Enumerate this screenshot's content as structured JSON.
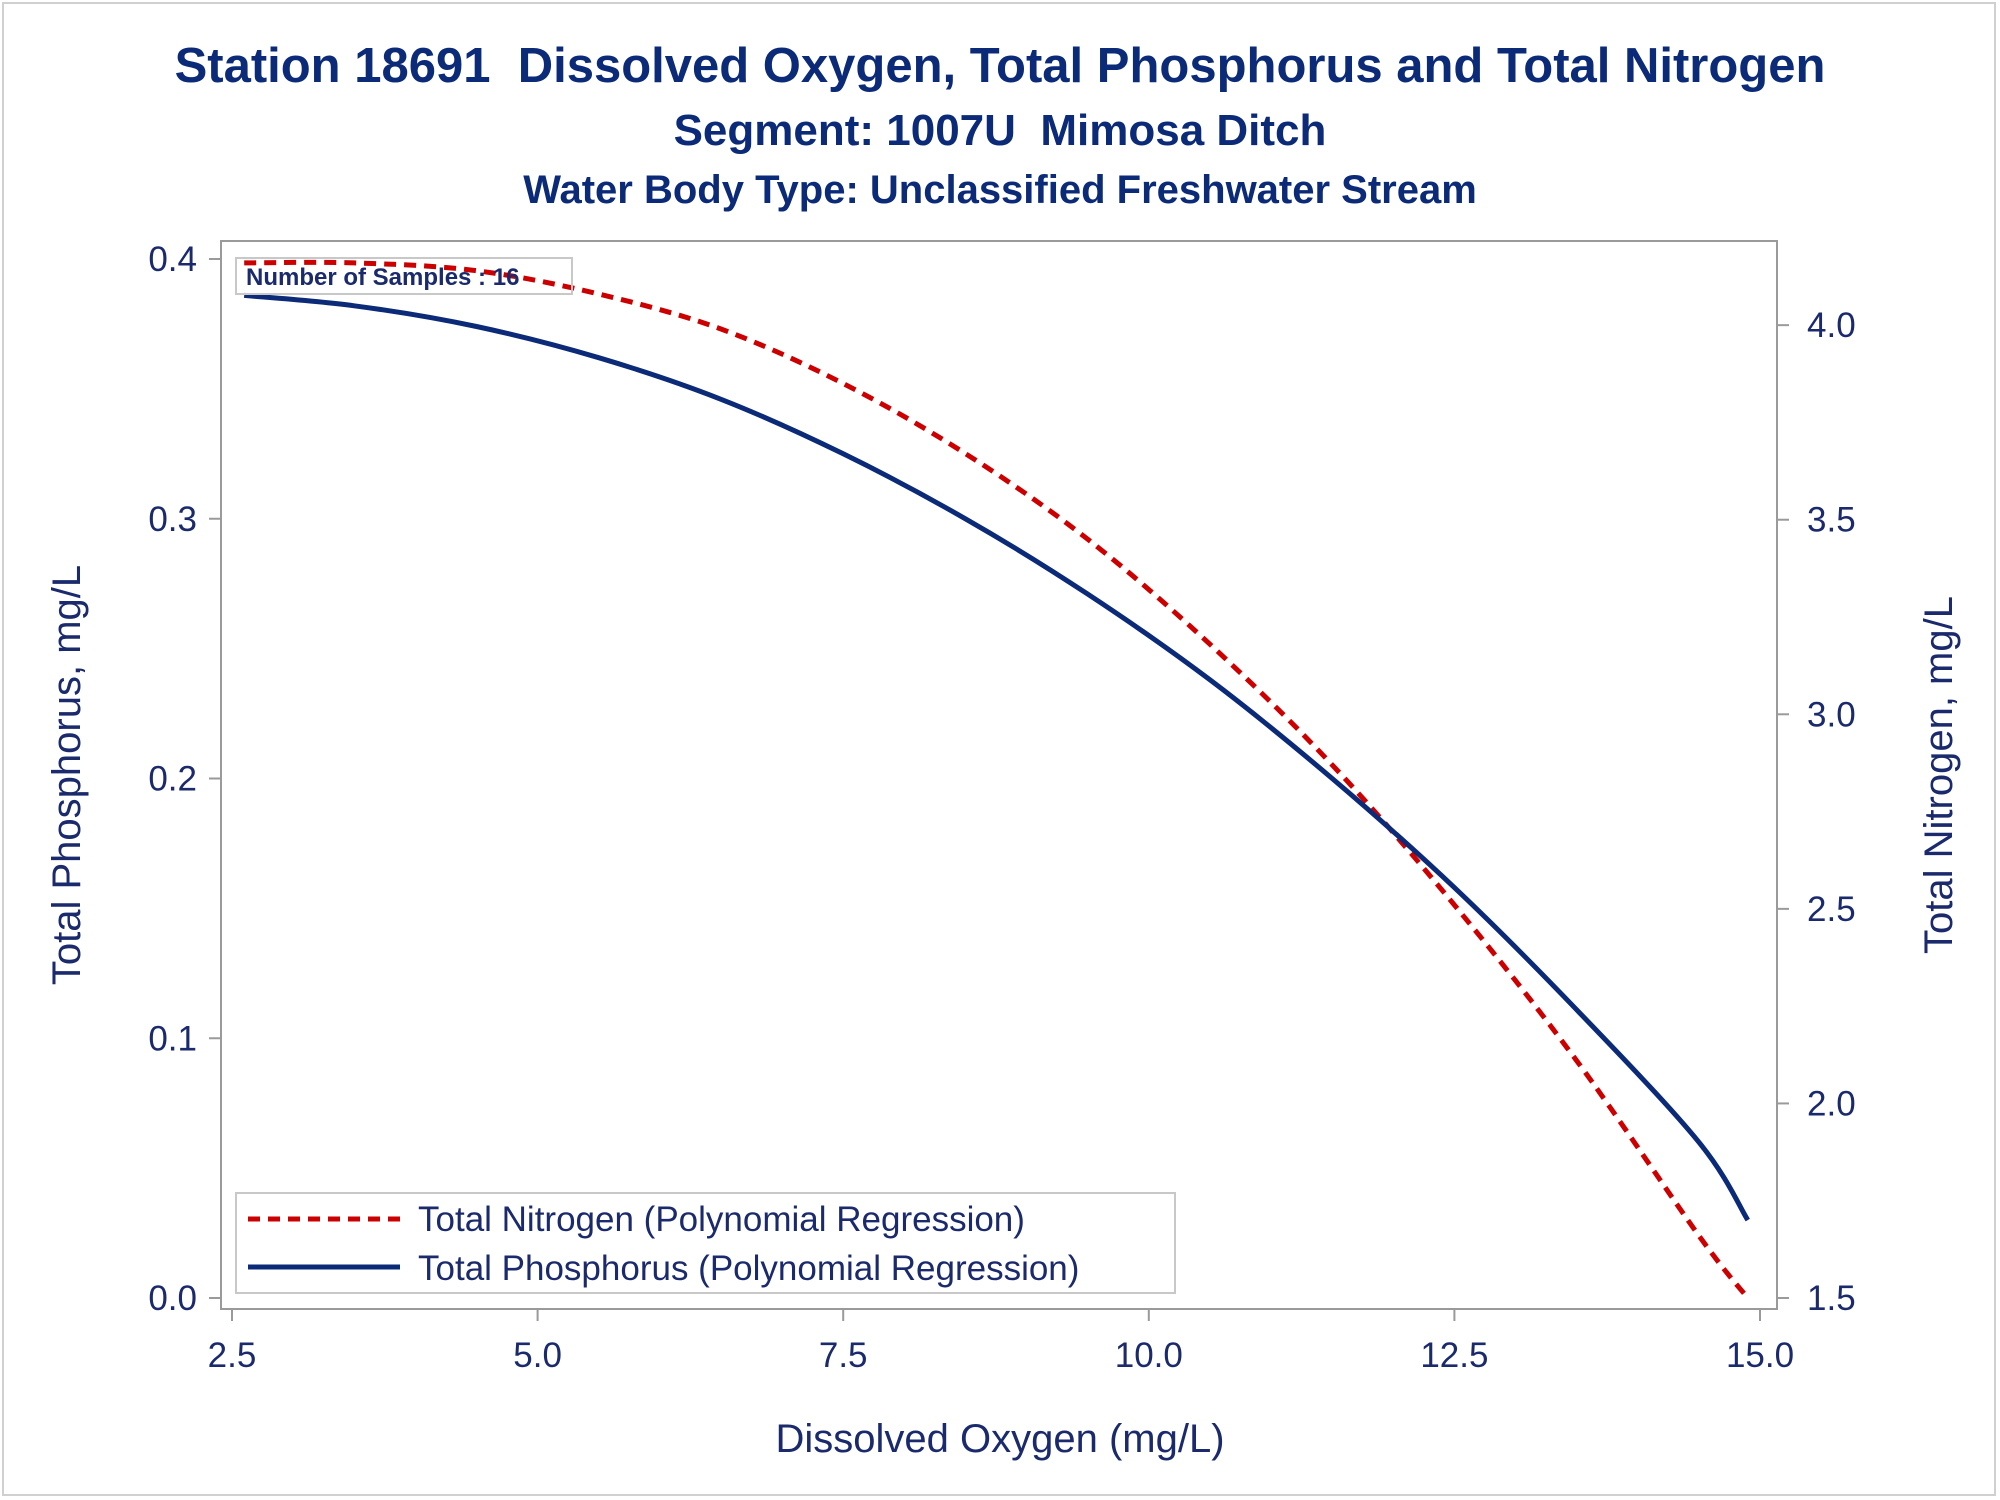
{
  "title": "Station 18691  Dissolved Oxygen, Total Phosphorus and Total Nitrogen",
  "subtitle": "Segment: 1007U  Mimosa Ditch",
  "subtitle2": "Water Body Type: Unclassified Freshwater Stream",
  "annotation": "Number of Samples : 16",
  "colors": {
    "text": "#0b2a78",
    "nitrogen": "#cc0000",
    "phosphorus": "#0b2a78",
    "axis": "#9a9a9a"
  },
  "chart_data": {
    "type": "line",
    "title": "Station 18691  Dissolved Oxygen, Total Phosphorus and Total Nitrogen",
    "xlabel": "Dissolved Oxygen (mg/L)",
    "ylabel": "Total Phosphorus, mg/L",
    "y2label": "Total Nitrogen, mg/L",
    "xlim": [
      2.5,
      15.0
    ],
    "ylim": [
      0.0,
      0.4
    ],
    "y2lim": [
      1.5,
      4.17
    ],
    "xticks": [
      "2.5",
      "5.0",
      "7.5",
      "10.0",
      "12.5",
      "15.0"
    ],
    "yticks": [
      "0.0",
      "0.1",
      "0.2",
      "0.3",
      "0.4"
    ],
    "y2ticks": [
      "1.5",
      "2.0",
      "2.5",
      "3.0",
      "3.5",
      "4.0"
    ],
    "grid": false,
    "legend_position": "bottom-left",
    "series": [
      {
        "name": "Total Nitrogen (Polynomial Regression)",
        "axis": "right",
        "style": "dashed",
        "color": "#cc0000",
        "x": [
          2.6,
          3.5,
          4.5,
          5.5,
          6.5,
          7.5,
          8.5,
          9.5,
          10.5,
          11.5,
          12.5,
          13.5,
          14.5,
          14.9
        ],
        "y": [
          4.16,
          4.16,
          4.14,
          4.08,
          3.99,
          3.85,
          3.67,
          3.45,
          3.18,
          2.87,
          2.51,
          2.11,
          1.66,
          1.5
        ]
      },
      {
        "name": "Total Phosphorus (Polynomial Regression)",
        "axis": "left",
        "style": "solid",
        "color": "#0b2a78",
        "x": [
          2.6,
          3.5,
          4.5,
          5.5,
          6.5,
          7.5,
          8.5,
          9.5,
          10.5,
          11.5,
          12.5,
          13.5,
          14.5,
          14.9
        ],
        "y": [
          0.386,
          0.382,
          0.374,
          0.362,
          0.346,
          0.325,
          0.3,
          0.271,
          0.238,
          0.2,
          0.158,
          0.111,
          0.06,
          0.03
        ]
      }
    ]
  }
}
